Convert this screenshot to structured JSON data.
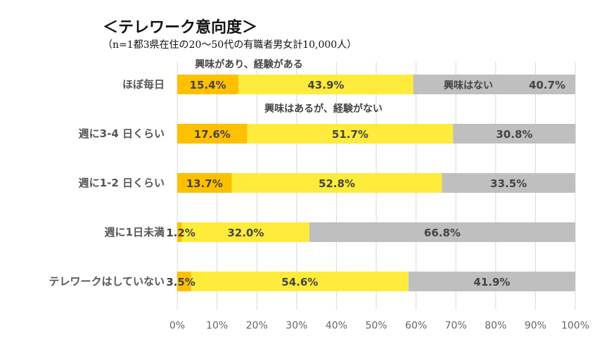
{
  "chart_data": {
    "type": "bar",
    "orientation": "horizontal",
    "stacked": true,
    "title": "＜テレワーク意向度＞",
    "subtitle": "（n=1都3県在住の20〜50代の有職者男女計10,000人）",
    "categories": [
      "ほぼ毎日",
      "週に3-4 日くらい",
      "週に1-2 日くらい",
      "週に1日未満",
      "テレワークはしていない"
    ],
    "series": [
      {
        "name": "興味があり、経験がある",
        "color": "#FFC000",
        "values": [
          15.4,
          17.6,
          13.7,
          1.2,
          3.5
        ],
        "labels": [
          "15.4%",
          "17.6%",
          "13.7%",
          "1.2%",
          "3.5%"
        ]
      },
      {
        "name": "興味はあるが、経験がない",
        "color": "#FFEB3B",
        "values": [
          43.9,
          51.7,
          52.8,
          32.0,
          54.6
        ],
        "labels": [
          "43.9%",
          "51.7%",
          "52.8%",
          "32.0%",
          "54.6%"
        ]
      },
      {
        "name": "興味はない",
        "color": "#BFBFBF",
        "values": [
          40.7,
          30.8,
          33.5,
          66.8,
          41.9
        ],
        "labels": [
          "40.7%",
          "30.8%",
          "33.5%",
          "66.8%",
          "41.9%"
        ]
      }
    ],
    "annotations": {
      "series1": "興味があり、経験がある",
      "series2": "興味はあるが、経験がない",
      "series3": "興味はない"
    },
    "xlim": [
      0,
      100
    ],
    "xticks": [
      "0%",
      "10%",
      "20%",
      "30%",
      "40%",
      "50%",
      "60%",
      "70%",
      "80%",
      "90%",
      "100%"
    ],
    "grid": true
  }
}
